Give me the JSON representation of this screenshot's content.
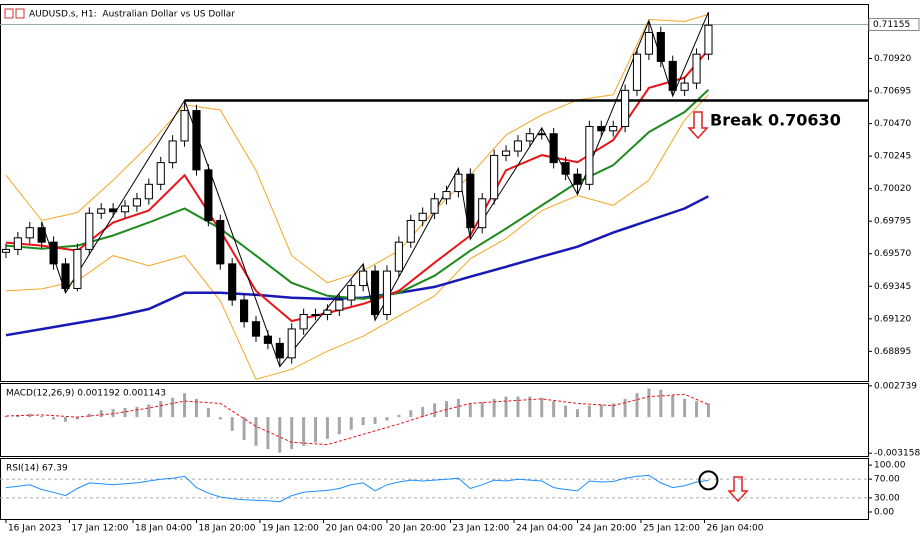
{
  "chart_data": [
    {
      "type": "candlestick",
      "title": "AUDUSD.s, H1:  Australian Dollar vs US Dollar",
      "xlim": [
        -0.5,
        72.4
      ],
      "ylim": [
        0.6869,
        0.7129
      ],
      "yticks": [
        0.68895,
        {
          "value": 0.6912,
          "label": "0.69120"
        },
        0.69345,
        {
          "value": 0.6957,
          "label": "0.69570"
        },
        0.69795,
        {
          "value": 0.7002,
          "label": "0.70020"
        },
        0.70245,
        {
          "value": 0.7047,
          "label": "0.70470"
        },
        0.70695,
        {
          "value": 0.7092,
          "label": "0.70920"
        }
      ],
      "current_price": 0.71155,
      "xticks": [
        {
          "value": 0,
          "label": "16 Jan 2023"
        },
        {
          "value": 5.33,
          "label": "17 Jan 12:00"
        },
        {
          "value": 10.67,
          "label": "18 Jan 04:00"
        },
        {
          "value": 16,
          "label": "18 Jan 20:00"
        },
        {
          "value": 21.33,
          "label": "19 Jan 12:00"
        },
        {
          "value": 26.67,
          "label": "20 Jan 04:00"
        },
        {
          "value": 32,
          "label": "20 Jan 20:00"
        },
        {
          "value": 37.33,
          "label": "23 Jan 12:00"
        },
        {
          "value": 42.67,
          "label": "24 Jan 04:00"
        },
        {
          "value": 48,
          "label": "24 Jan 20:00"
        },
        {
          "value": 53.33,
          "label": "25 Jan 12:00"
        },
        {
          "value": 58.67,
          "label": "26 Jan 04:00"
        }
      ],
      "up_color": "#ffffff",
      "down_color": "#000000",
      "open": [
        0.6958,
        0.696,
        0.6968,
        0.6975,
        0.6965,
        0.695,
        0.6933,
        0.696,
        0.6985,
        0.6988,
        0.6986,
        0.699,
        0.6995,
        0.7005,
        0.702,
        0.7035,
        0.7056,
        0.7015,
        0.698,
        0.695,
        0.6925,
        0.691,
        0.69,
        0.6895,
        0.6885,
        0.6905,
        0.6915,
        0.6915,
        0.6918,
        0.6925,
        0.6935,
        0.6945,
        0.6915,
        0.6945,
        0.6965,
        0.698,
        0.6985,
        0.6995,
        0.7,
        0.7012,
        0.6975,
        0.6995,
        0.7025,
        0.7028,
        0.7035,
        0.704,
        0.704,
        0.702,
        0.7012,
        0.7005,
        0.7045,
        0.7042,
        0.7045,
        0.707,
        0.7095,
        0.711,
        0.709,
        0.707,
        0.7075,
        0.7095
      ],
      "high": [
        0.6964,
        0.6972,
        0.6979,
        0.6979,
        0.6969,
        0.6954,
        0.6964,
        0.6989,
        0.6992,
        0.6992,
        0.6994,
        0.6999,
        0.7009,
        0.7024,
        0.7039,
        0.7063,
        0.706,
        0.7019,
        0.6984,
        0.6954,
        0.6929,
        0.6914,
        0.6904,
        0.6899,
        0.6909,
        0.6919,
        0.6919,
        0.6922,
        0.6929,
        0.6939,
        0.695,
        0.6949,
        0.6949,
        0.6969,
        0.6984,
        0.6989,
        0.6999,
        0.7004,
        0.7016,
        0.7016,
        0.6999,
        0.7029,
        0.7032,
        0.7039,
        0.7044,
        0.7044,
        0.7044,
        0.7024,
        0.7016,
        0.7049,
        0.7049,
        0.7049,
        0.7074,
        0.7099,
        0.7118,
        0.7114,
        0.7094,
        0.7079,
        0.7099,
        0.7124
      ],
      "low": [
        0.6954,
        0.6956,
        0.6964,
        0.6961,
        0.6946,
        0.693,
        0.6931,
        0.6956,
        0.6981,
        0.6982,
        0.6982,
        0.6986,
        0.6991,
        0.7001,
        0.7016,
        0.7031,
        0.7011,
        0.6976,
        0.6946,
        0.6921,
        0.6906,
        0.6896,
        0.6891,
        0.6879,
        0.6881,
        0.6901,
        0.6911,
        0.6911,
        0.6914,
        0.6921,
        0.6931,
        0.6911,
        0.6911,
        0.6941,
        0.6961,
        0.6976,
        0.6981,
        0.6991,
        0.6996,
        0.6967,
        0.6971,
        0.6991,
        0.7021,
        0.7024,
        0.7031,
        0.7036,
        0.7016,
        0.7008,
        0.6998,
        0.7001,
        0.7038,
        0.7038,
        0.7041,
        0.7066,
        0.7091,
        0.7086,
        0.7066,
        0.7066,
        0.7071,
        0.7091
      ],
      "close": [
        0.696,
        0.6968,
        0.6975,
        0.6965,
        0.695,
        0.6933,
        0.696,
        0.6985,
        0.6988,
        0.6986,
        0.699,
        0.6995,
        0.7005,
        0.702,
        0.7035,
        0.7056,
        0.7015,
        0.698,
        0.695,
        0.6925,
        0.691,
        0.69,
        0.6895,
        0.6885,
        0.6905,
        0.6915,
        0.6915,
        0.6918,
        0.6925,
        0.6935,
        0.6945,
        0.6915,
        0.6945,
        0.6965,
        0.698,
        0.6985,
        0.6995,
        0.7,
        0.7012,
        0.6975,
        0.6995,
        0.7025,
        0.7028,
        0.7035,
        0.704,
        0.704,
        0.702,
        0.7012,
        0.7005,
        0.7045,
        0.7042,
        0.7045,
        0.707,
        0.7095,
        0.711,
        0.709,
        0.707,
        0.7075,
        0.7095,
        0.7115
      ],
      "series": [
        {
          "color": "#f5a623",
          "width": 1,
          "x": [
            0,
            3,
            6,
            9,
            12,
            15,
            18,
            21,
            24,
            27,
            30,
            33,
            36,
            39,
            42,
            45,
            48,
            51,
            54,
            57,
            59
          ],
          "values": [
            0.70113,
            0.698,
            0.69855,
            0.70078,
            0.70321,
            0.70599,
            0.70564,
            0.70147,
            0.69557,
            0.69369,
            0.69452,
            0.69591,
            0.69869,
            0.70113,
            0.70391,
            0.7053,
            0.70634,
            0.70669,
            0.7119,
            0.71176,
            0.71225
          ]
        },
        {
          "color": "#f5a623",
          "width": 1,
          "x": [
            0,
            3,
            6,
            9,
            12,
            15,
            18,
            21,
            24,
            27,
            30,
            33,
            36,
            39,
            42,
            45,
            48,
            51,
            54,
            57,
            59
          ],
          "values": [
            0.69313,
            0.69327,
            0.69383,
            0.69557,
            0.69487,
            0.69557,
            0.69244,
            0.68702,
            0.68771,
            0.68896,
            0.69,
            0.6914,
            0.69279,
            0.69536,
            0.69675,
            0.69869,
            0.69973,
            0.69904,
            0.70078,
            0.70495,
            0.70669
          ]
        },
        {
          "color": "#1818b4",
          "width": 2.5,
          "x": [
            0,
            3,
            6,
            9,
            12,
            15,
            18,
            21,
            24,
            27,
            30,
            33,
            36,
            39,
            42,
            45,
            48,
            51,
            54,
            57,
            59
          ],
          "values": [
            0.69007,
            0.69049,
            0.69091,
            0.69133,
            0.69188,
            0.693,
            0.693,
            0.69286,
            0.69265,
            0.69258,
            0.69265,
            0.693,
            0.69341,
            0.69411,
            0.6948,
            0.6955,
            0.69619,
            0.69716,
            0.698,
            0.69883,
            0.69967
          ]
        },
        {
          "color": "#1d8a1d",
          "width": 2,
          "x": [
            0,
            3,
            6,
            9,
            12,
            15,
            18,
            21,
            24,
            27,
            30,
            33,
            36,
            39,
            42,
            45,
            48,
            51,
            54,
            57,
            59
          ],
          "values": [
            0.69626,
            0.69605,
            0.69626,
            0.69696,
            0.69786,
            0.69883,
            0.69744,
            0.69557,
            0.69369,
            0.69279,
            0.69258,
            0.693,
            0.69418,
            0.69591,
            0.69744,
            0.69904,
            0.70064,
            0.70182,
            0.70411,
            0.7055,
            0.70703
          ]
        },
        {
          "color": "#e8141a",
          "width": 2,
          "x": [
            0,
            3,
            6,
            9,
            12,
            15,
            18,
            21,
            24,
            27,
            30,
            33,
            36,
            39,
            42,
            45,
            48,
            51,
            54,
            57,
            59
          ],
          "values": [
            0.69647,
            0.69626,
            0.69591,
            0.69786,
            0.69869,
            0.70113,
            0.6973,
            0.69313,
            0.69105,
            0.6916,
            0.69223,
            0.69313,
            0.69508,
            0.69696,
            0.70147,
            0.70252,
            0.70203,
            0.70356,
            0.70717,
            0.70787,
            0.70981
          ]
        },
        {
          "color": "#000000",
          "width": 1,
          "x": [
            3,
            5,
            15,
            23,
            30,
            31,
            38,
            39,
            45,
            48,
            54,
            56,
            59
          ],
          "values": [
            0.6979,
            0.693,
            0.7063,
            0.6879,
            0.695,
            0.6911,
            0.7016,
            0.6967,
            0.7044,
            0.6998,
            0.7118,
            0.7066,
            0.7124
          ]
        }
      ],
      "level": {
        "value": 0.7063,
        "from_x": 15
      },
      "annotation": "Break 0.70630"
    },
    {
      "type": "macd",
      "title": "MACD(12,26,9) 0.001192 0.001143",
      "xlim": [
        -0.5,
        72.4
      ],
      "ylim": [
        -0.0034,
        0.0029
      ],
      "yticks": [
        0.002739,
        -0.003158
      ],
      "color": "#a6a6a6",
      "values": [
        0.0001,
        0.0002,
        0.0003,
        0.0001,
        -0.0002,
        -0.0004,
        -0.0002,
        0.0003,
        0.0006,
        0.0007,
        0.0008,
        0.0009,
        0.0011,
        0.0014,
        0.0017,
        0.0021,
        0.0016,
        0.0008,
        -0.0002,
        -0.0012,
        -0.002,
        -0.0025,
        -0.0028,
        -0.0031,
        -0.0028,
        -0.0025,
        -0.0022,
        -0.0019,
        -0.0015,
        -0.0011,
        -0.0007,
        -0.0006,
        -0.0003,
        0.0002,
        0.0006,
        0.0009,
        0.0012,
        0.0014,
        0.0016,
        0.0012,
        0.0013,
        0.0016,
        0.0018,
        0.0018,
        0.0018,
        0.0017,
        0.0014,
        0.001,
        0.0007,
        0.001,
        0.0011,
        0.0012,
        0.0016,
        0.0021,
        0.0025,
        0.0024,
        0.0019,
        0.0016,
        0.0014,
        0.0012
      ],
      "signal": {
        "color": "#e8141a",
        "x": [
          0,
          3,
          6,
          9,
          12,
          15,
          18,
          21,
          24,
          27,
          30,
          33,
          36,
          39,
          42,
          45,
          48,
          51,
          54,
          57,
          59
        ],
        "values": [
          0.0001,
          0.0002,
          0,
          0.0003,
          0.0008,
          0.0014,
          0.0012,
          -0.0008,
          -0.0022,
          -0.0024,
          -0.0015,
          -0.0006,
          0.0004,
          0.0012,
          0.0014,
          0.0016,
          0.0012,
          0.001,
          0.0018,
          0.002,
          0.0011
        ]
      }
    },
    {
      "type": "line",
      "title": "RSI(14) 67.39",
      "xlim": [
        -0.5,
        72.4
      ],
      "ylim": [
        -15,
        113
      ],
      "yticks": [
        {
          "value": 100,
          "label": "100.00"
        },
        {
          "value": 70,
          "label": "70.00"
        },
        {
          "value": 30,
          "label": "30.00"
        },
        {
          "value": 0,
          "label": "0.00"
        }
      ],
      "levels": [
        70,
        30
      ],
      "color": "#1e8fff",
      "values": [
        52,
        55,
        58,
        48,
        42,
        35,
        50,
        62,
        60,
        58,
        60,
        62,
        66,
        70,
        72,
        76,
        52,
        40,
        32,
        28,
        26,
        25,
        24,
        22,
        35,
        42,
        44,
        46,
        50,
        58,
        62,
        45,
        58,
        64,
        68,
        66,
        68,
        70,
        72,
        50,
        58,
        68,
        66,
        70,
        68,
        66,
        52,
        48,
        45,
        66,
        64,
        65,
        72,
        76,
        78,
        62,
        52,
        56,
        64,
        67.39
      ]
    }
  ]
}
